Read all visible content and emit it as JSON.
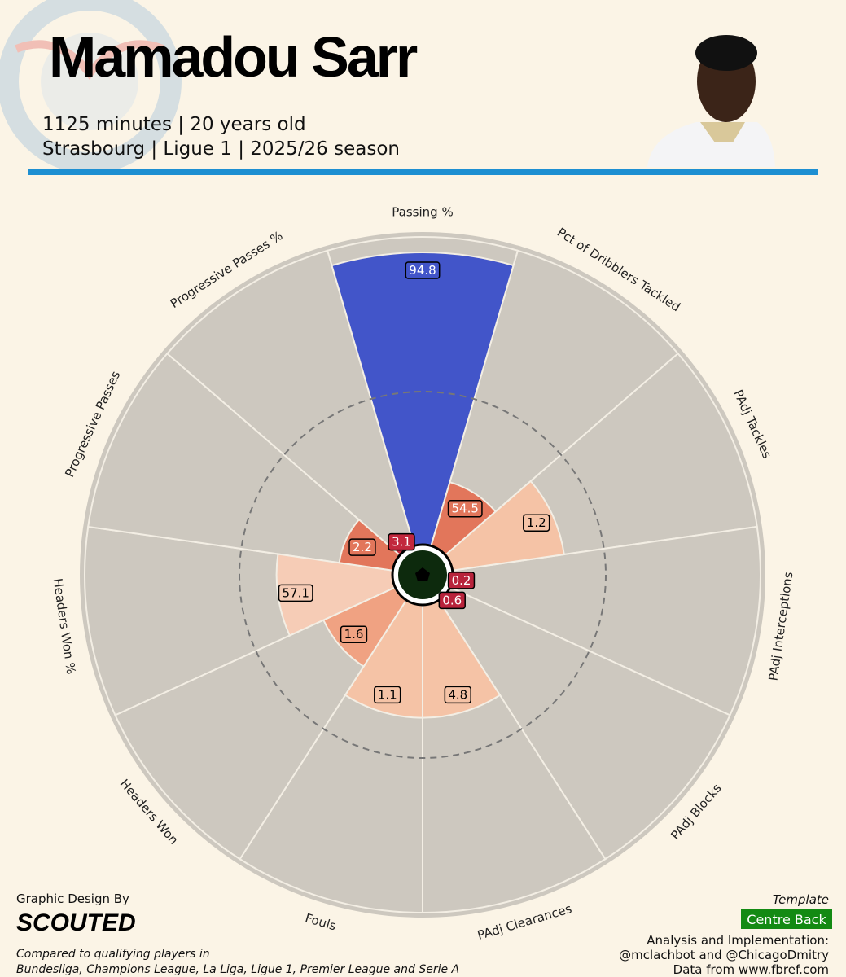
{
  "header": {
    "title": "Mamadou Sarr",
    "line1": "1125 minutes | 20 years old",
    "line2": "Strasbourg | Ligue 1 | 2025/26 season"
  },
  "chart_data": {
    "type": "pizza",
    "categories": [
      "Passing %",
      "Pct of Dribblers Tackled",
      "PAdj Tackles",
      "PAdj Interceptions",
      "PAdj Blocks",
      "PAdj Clearances",
      "Fouls",
      "Headers Won",
      "Headers Won %",
      "Progressive Passes",
      "Progressive Passes %"
    ],
    "values": [
      94.8,
      54.5,
      1.2,
      0.2,
      0.6,
      4.8,
      1.1,
      1.6,
      57.1,
      2.2,
      3.1
    ],
    "percentiles": [
      95,
      22,
      37,
      0,
      0,
      37,
      37,
      26,
      38,
      18,
      4
    ],
    "colors": [
      "#4255c9",
      "#e2765b",
      "#f5c3a6",
      "#b8233b",
      "#b8233b",
      "#f5c3a6",
      "#f5c3a6",
      "#f0a282",
      "#f6ccb6",
      "#e2765b",
      "#c2283d"
    ],
    "ylim": [
      0,
      100
    ],
    "reference_ring": 50
  },
  "footer": {
    "design_label": "Graphic Design By",
    "brand": "SCOUTED",
    "compared_1": "Compared to qualifying players in",
    "compared_2": "Bundesliga, Champions League, La Liga, Ligue 1, Premier League and Serie A",
    "template_label": "Template",
    "template": "Centre Back",
    "analysis_label": "Analysis and Implementation:",
    "analysts": "@mclachbot and @ChicagoDmitry",
    "source": "Data from www.fbref.com"
  }
}
